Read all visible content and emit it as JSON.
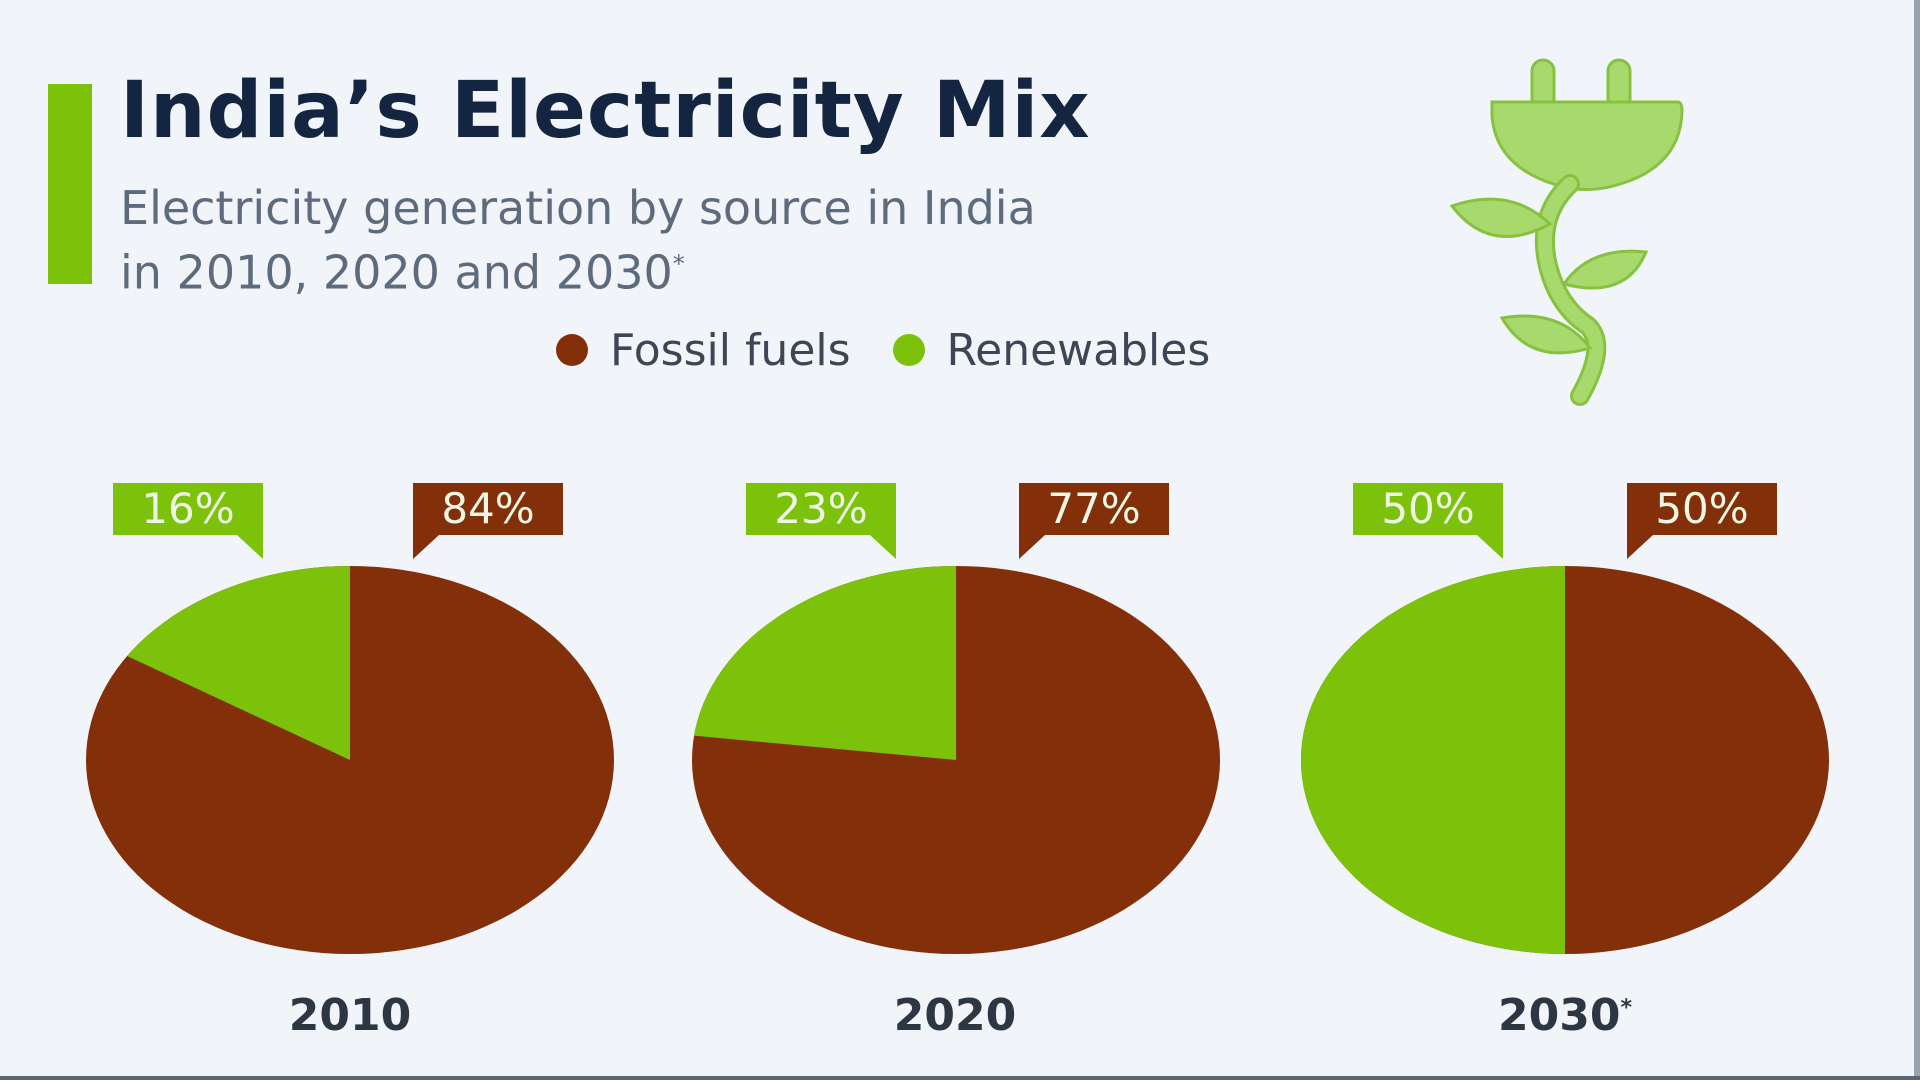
{
  "header": {
    "title": "India’s Electricity Mix",
    "subtitle_line1": "Electricity generation by source in India",
    "subtitle_line2": "in 2010, 2020 and 2030",
    "subtitle_footnote_mark": "*"
  },
  "legend": {
    "items": [
      {
        "label": "Fossil fuels",
        "color": "#83300a"
      },
      {
        "label": "Renewables",
        "color": "#7cc10a"
      }
    ]
  },
  "icon": {
    "name": "plug-plant-icon",
    "color": "#a6d96a"
  },
  "colors": {
    "fossil": "#83300a",
    "renewable": "#7cc10a",
    "accent": "#7cc10a",
    "background": "#f1f5fa",
    "title": "#132540"
  },
  "pies": [
    {
      "year": "2010",
      "footnote": "",
      "renewables_label": "16%",
      "fossil_label": "84%"
    },
    {
      "year": "2020",
      "footnote": "",
      "renewables_label": "23%",
      "fossil_label": "77%"
    },
    {
      "year": "2030",
      "footnote": "*",
      "renewables_label": "50%",
      "fossil_label": "50%"
    }
  ],
  "chart_data": {
    "type": "pie",
    "title": "India’s Electricity Mix",
    "subtitle": "Electricity generation by source in India in 2010, 2020 and 2030*",
    "categories": [
      "2010",
      "2020",
      "2030*"
    ],
    "series": [
      {
        "name": "Fossil fuels",
        "values": [
          84,
          77,
          50
        ],
        "color": "#83300a"
      },
      {
        "name": "Renewables",
        "values": [
          16,
          23,
          50
        ],
        "color": "#7cc10a"
      }
    ],
    "unit": "%",
    "legend_position": "top",
    "grid": false
  }
}
